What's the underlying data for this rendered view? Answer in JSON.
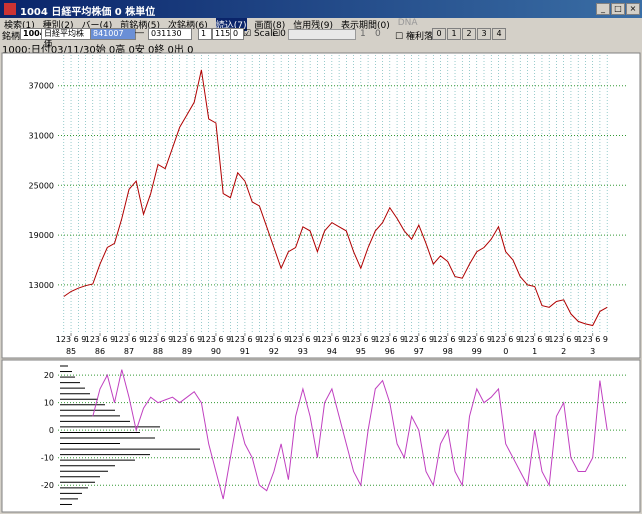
{
  "window": {
    "title": "1004 日経平均株価 0 株単位",
    "menu": [
      "検索(1)",
      "種別(2)",
      "バー(4)",
      "前銘柄(5)",
      "次銘柄(6)",
      "読込(7)",
      "画面(8)",
      "信用残(9)",
      "表示期間(0)",
      "DNA"
    ],
    "toolbar": [
      "銘柄",
      "1004",
      "日経平均株価",
      "841007",
      "―",
      "031130",
      "1",
      "1150",
      "0",
      "Scale",
      "0",
      "1",
      "0",
      "権利落",
      "0",
      "1",
      "2",
      "3",
      "4"
    ],
    "status": "1000:日付03/11/30始 0高 0安 0終 0出 0"
  },
  "chart_data": [
    {
      "type": "line",
      "x": [
        1985.0,
        1985.25,
        1985.5,
        1985.75,
        1986.0,
        1986.25,
        1986.5,
        1986.75,
        1987.0,
        1987.25,
        1987.5,
        1987.75,
        1988.0,
        1988.25,
        1988.5,
        1988.75,
        1989.0,
        1989.25,
        1989.5,
        1989.75,
        1990.0,
        1990.25,
        1990.5,
        1990.75,
        1991.0,
        1991.25,
        1991.5,
        1991.75,
        1992.0,
        1992.25,
        1992.5,
        1992.75,
        1993.0,
        1993.25,
        1993.5,
        1993.75,
        1994.0,
        1994.25,
        1994.5,
        1994.75,
        1995.0,
        1995.25,
        1995.5,
        1995.75,
        1996.0,
        1996.25,
        1996.5,
        1996.75,
        1997.0,
        1997.25,
        1997.5,
        1997.75,
        1998.0,
        1998.25,
        1998.5,
        1998.75,
        1999.0,
        1999.25,
        1999.5,
        1999.75,
        2000.0,
        2000.25,
        2000.5,
        2000.75,
        2001.0,
        2001.25,
        2001.5,
        2001.75,
        2002.0,
        2002.25,
        2002.5,
        2002.75,
        2003.0,
        2003.25,
        2003.5,
        2003.75
      ],
      "series": [
        {
          "color": "#b00000",
          "values": [
            11600,
            12200,
            12600,
            12900,
            13100,
            15500,
            17500,
            18000,
            21000,
            24500,
            25500,
            21500,
            24000,
            27500,
            27000,
            29500,
            32000,
            33500,
            35000,
            38900,
            33000,
            32500,
            24000,
            23500,
            26500,
            25500,
            23000,
            22500,
            20000,
            17500,
            15000,
            17000,
            17500,
            20000,
            19500,
            17000,
            19500,
            20500,
            20000,
            19500,
            17000,
            15000,
            17500,
            19500,
            20500,
            22300,
            21000,
            19500,
            18500,
            20200,
            18000,
            15500,
            16500,
            15800,
            14000,
            13800,
            15500,
            17000,
            17500,
            18500,
            20000,
            17000,
            16000,
            14000,
            13000,
            12800,
            10500,
            10300,
            11000,
            11200,
            9500,
            8600,
            8300,
            8100,
            9800,
            10300
          ]
        }
      ],
      "xlim": [
        1984.8,
        2004.4
      ],
      "ylim": [
        7200,
        40700
      ],
      "yticks": [
        13000,
        19000,
        25000,
        31000,
        37000
      ],
      "month_labels": "123 6 9",
      "xticks": [
        {
          "value": 1985.25,
          "label": "85"
        },
        {
          "value": 1986.25,
          "label": "86"
        },
        {
          "value": 1987.25,
          "label": "87"
        },
        {
          "value": 1988.25,
          "label": "88"
        },
        {
          "value": 1989.25,
          "label": "89"
        },
        {
          "value": 1990.25,
          "label": "90"
        },
        {
          "value": 1991.25,
          "label": "91"
        },
        {
          "value": 1992.25,
          "label": "92"
        },
        {
          "value": 1993.25,
          "label": "93"
        },
        {
          "value": 1994.25,
          "label": "94"
        },
        {
          "value": 1995.25,
          "label": "95"
        },
        {
          "value": 1996.25,
          "label": "96"
        },
        {
          "value": 1997.25,
          "label": "97"
        },
        {
          "value": 1998.25,
          "label": "98"
        },
        {
          "value": 1999.25,
          "label": "99"
        },
        {
          "value": 2000.25,
          "label": "0"
        },
        {
          "value": 2001.25,
          "label": "1"
        },
        {
          "value": 2002.25,
          "label": "2"
        },
        {
          "value": 2003.25,
          "label": "3"
        }
      ],
      "grid": true
    },
    {
      "type": "line",
      "x": [
        1986.0,
        1986.25,
        1986.5,
        1986.75,
        1987.0,
        1987.25,
        1987.5,
        1987.75,
        1988.0,
        1988.25,
        1988.5,
        1988.75,
        1989.0,
        1989.25,
        1989.5,
        1989.75,
        1990.0,
        1990.25,
        1990.5,
        1990.75,
        1991.0,
        1991.25,
        1991.5,
        1991.75,
        1992.0,
        1992.25,
        1992.5,
        1992.75,
        1993.0,
        1993.25,
        1993.5,
        1993.75,
        1994.0,
        1994.25,
        1994.5,
        1994.75,
        1995.0,
        1995.25,
        1995.5,
        1995.75,
        1996.0,
        1996.25,
        1996.5,
        1996.75,
        1997.0,
        1997.25,
        1997.5,
        1997.75,
        1998.0,
        1998.25,
        1998.5,
        1998.75,
        1999.0,
        1999.25,
        1999.5,
        1999.75,
        2000.0,
        2000.25,
        2000.5,
        2000.75,
        2001.0,
        2001.25,
        2001.5,
        2001.75,
        2002.0,
        2002.25,
        2002.5,
        2002.75,
        2003.0,
        2003.25,
        2003.5,
        2003.75
      ],
      "series": [
        {
          "color": "#c040c0",
          "values": [
            5,
            15,
            20,
            10,
            22,
            12,
            0,
            8,
            12,
            10,
            11,
            12,
            10,
            12,
            14,
            10,
            -5,
            -15,
            -25,
            -10,
            5,
            -5,
            -10,
            -20,
            -22,
            -15,
            -5,
            -18,
            5,
            15,
            5,
            -10,
            10,
            15,
            5,
            -5,
            -15,
            -20,
            0,
            15,
            18,
            10,
            -5,
            -10,
            5,
            0,
            -15,
            -20,
            -5,
            0,
            -15,
            -20,
            5,
            15,
            10,
            12,
            15,
            -5,
            -10,
            -15,
            -20,
            0,
            -15,
            -20,
            5,
            10,
            -10,
            -15,
            -15,
            -10,
            18,
            0
          ]
        }
      ],
      "xlim": [
        1984.8,
        2004.4
      ],
      "ylim": [
        -29,
        25.5
      ],
      "yticks": [
        -20,
        -10,
        0,
        10,
        20
      ],
      "profile": [
        8,
        12,
        15,
        20,
        25,
        30,
        38,
        45,
        55,
        60,
        70,
        100,
        80,
        95,
        60,
        140,
        90,
        75,
        55,
        48,
        40,
        35,
        28,
        22,
        18,
        12
      ],
      "grid": true
    }
  ]
}
